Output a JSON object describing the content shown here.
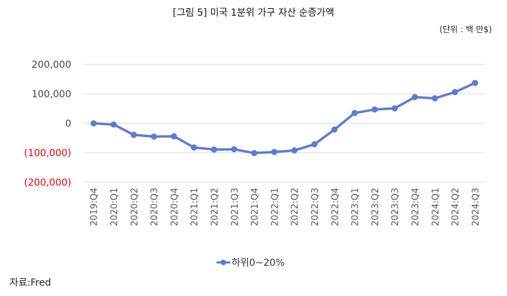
{
  "title": "[그림 5] 미국 1분위 가구 자산 순증가액",
  "unit": "(단위 : 백 만$)",
  "source": "자료:Fred",
  "chart_data": {
    "type": "line",
    "categories": [
      "2019:Q4",
      "2020:Q1",
      "2020:Q2",
      "2020:Q3",
      "2020:Q4",
      "2021:Q1",
      "2021:Q2",
      "2021:Q3",
      "2021:Q4",
      "2022:Q1",
      "2022:Q2",
      "2022:Q3",
      "2022:Q4",
      "2023:Q1",
      "2023:Q2",
      "2023:Q3",
      "2023:Q4",
      "2024:Q1",
      "2024:Q2",
      "2024:Q3"
    ],
    "series": [
      {
        "name": "하위0~20%",
        "color": "#5B7BD5",
        "values": [
          0,
          -4000,
          -39000,
          -45000,
          -44000,
          -82000,
          -89000,
          -88000,
          -101000,
          -97000,
          -92000,
          -71000,
          -21000,
          35000,
          47000,
          51000,
          89000,
          85000,
          106000,
          137000
        ]
      }
    ],
    "yticks": [
      200000,
      100000,
      0,
      -100000,
      -200000
    ],
    "ytick_labels": [
      "200,000",
      "100,000",
      "0",
      "(100,000)",
      "(200,000)"
    ],
    "negative_label_color": "#E00000",
    "ylim": [
      -200000,
      200000
    ],
    "grid": true,
    "legend_position": "bottom"
  }
}
